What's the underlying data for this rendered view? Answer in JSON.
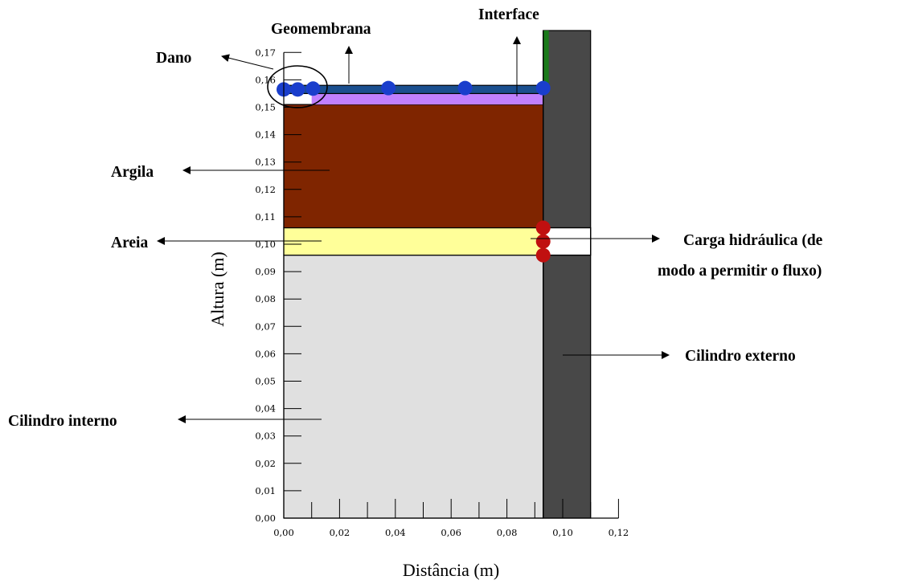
{
  "chart_data": {
    "type": "diagram",
    "xlabel": "Distância (m)",
    "ylabel": "Altura (m)",
    "xlim": [
      0,
      0.12
    ],
    "ylim": [
      0,
      0.17
    ],
    "x_ticks": [
      "0,00",
      "0,02",
      "0,04",
      "0,06",
      "0,08",
      "0,10",
      "0,12"
    ],
    "y_ticks": [
      "0,00",
      "0,01",
      "0,02",
      "0,03",
      "0,04",
      "0,05",
      "0,06",
      "0,07",
      "0,08",
      "0,09",
      "0,10",
      "0,11",
      "0,12",
      "0,13",
      "0,14",
      "0,15",
      "0,16",
      "0,17"
    ],
    "regions": [
      {
        "id": "cilindro-interno",
        "x0": 0,
        "x1": 0.093,
        "y0": 0,
        "y1": 0.096,
        "color": "#e0e0e0"
      },
      {
        "id": "areia",
        "x0": 0,
        "x1": 0.093,
        "y0": 0.096,
        "y1": 0.106,
        "color": "#ffff99"
      },
      {
        "id": "argila",
        "x0": 0,
        "x1": 0.093,
        "y0": 0.106,
        "y1": 0.151,
        "color": "#7f2500"
      },
      {
        "id": "interface",
        "x0": 0.01,
        "x1": 0.093,
        "y0": 0.151,
        "y1": 0.155,
        "color": "#c080ff"
      },
      {
        "id": "geomembrana",
        "x0": 0,
        "x1": 0.093,
        "y0": 0.155,
        "y1": 0.158,
        "color": "#1a4f8f"
      },
      {
        "id": "cilindro-externo",
        "x0": 0.093,
        "x1": 0.11,
        "y0": 0,
        "y1": 0.178,
        "color": "#484848"
      },
      {
        "id": "interface-vertical",
        "x0": 0.093,
        "x1": 0.095,
        "y0": 0.158,
        "y1": 0.178,
        "color": "#1a7a1a"
      }
    ],
    "gap": {
      "x0": 0.093,
      "x1": 0.11,
      "y0": 0.096,
      "y1": 0.106
    },
    "blue_nodes": [
      {
        "x": 0.0,
        "y": 0.1565
      },
      {
        "x": 0.005,
        "y": 0.1565
      },
      {
        "x": 0.0105,
        "y": 0.1568
      },
      {
        "x": 0.0375,
        "y": 0.157
      },
      {
        "x": 0.065,
        "y": 0.157
      },
      {
        "x": 0.093,
        "y": 0.157
      }
    ],
    "red_nodes": [
      {
        "x": 0.093,
        "y": 0.106
      },
      {
        "x": 0.093,
        "y": 0.101
      },
      {
        "x": 0.093,
        "y": 0.096
      }
    ],
    "node_colors": {
      "blue": "#1a3ecc",
      "red": "#c01010"
    },
    "annotations": {
      "dano": "Dano",
      "geomembrana": "Geomembrana",
      "interface": "Interface",
      "argila": "Argila",
      "areia": "Areia",
      "carga_line1": "Carga hidráulica (de",
      "carga_line2": "modo a permitir o fluxo)",
      "cilindro_externo": "Cilindro externo",
      "cilindro_interno": "Cilindro interno"
    }
  }
}
